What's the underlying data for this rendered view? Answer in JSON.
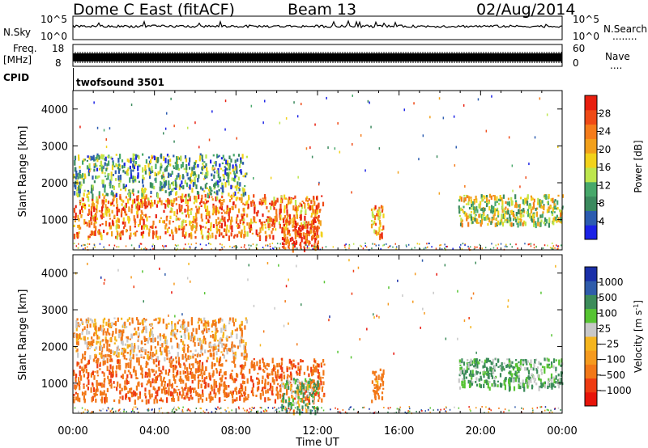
{
  "header": {
    "radar": "Dome C East (fitACF)",
    "beam": "Beam 13",
    "date": "02/Aug/2014"
  },
  "sky_panel": {
    "left_label": "N.Sky",
    "right_label": "N.Search",
    "left_ticks": [
      "10^5",
      "10^0"
    ],
    "right_ticks": [
      "10^5",
      "10^0"
    ],
    "right_dots": "........"
  },
  "freq_panel": {
    "left_label": "Freq.",
    "left_unit": "[MHz]",
    "left_ticks": [
      "18",
      "8"
    ],
    "right_label": "Nave",
    "right_ticks": [
      "60",
      "0"
    ],
    "right_dots": "...."
  },
  "cpid_panel": {
    "label": "CPID",
    "program": "twofsound 3501"
  },
  "colors": {
    "power": [
      "#1b22e6",
      "#2c5cb0",
      "#3b8a5e",
      "#47a86a",
      "#bde64d",
      "#f2d21b",
      "#f2a01b",
      "#f57c1b",
      "#ef4a16",
      "#e81e0e"
    ],
    "velocity": [
      "#1a2fa8",
      "#2f5cab",
      "#3c8c5a",
      "#56c432",
      "#c8c8c8",
      "#f5b51e",
      "#f59a1e",
      "#f27818",
      "#ee3b12",
      "#e8140a"
    ]
  },
  "chart_data": [
    {
      "type": "heatmap",
      "title": "",
      "ylabel": "Slant Range [km]",
      "xlabel": "",
      "x_unit": "UT hours",
      "xlim": [
        0,
        24
      ],
      "ylim": [
        180,
        4500
      ],
      "yticks": [
        "1000",
        "2000",
        "3000",
        "4000"
      ],
      "colorbar": {
        "label": "Power [dB]",
        "ticks": [
          "4",
          "8",
          "12",
          "16",
          "20",
          "24",
          "28"
        ],
        "range": [
          0,
          30
        ]
      },
      "echo_regions": [
        {
          "t0": 0.0,
          "t1": 12.3,
          "r0": 550,
          "r1": 1700,
          "level": 22
        },
        {
          "t0": 10.2,
          "t1": 12.0,
          "r0": 250,
          "r1": 1150,
          "level": 26
        },
        {
          "t0": 0.0,
          "t1": 8.5,
          "r0": 1700,
          "r1": 2800,
          "level": 10
        },
        {
          "t0": 14.6,
          "t1": 15.2,
          "r0": 500,
          "r1": 1400,
          "level": 20
        },
        {
          "t0": 18.9,
          "t1": 24.0,
          "r0": 900,
          "r1": 1700,
          "level": 14
        }
      ]
    },
    {
      "type": "heatmap",
      "title": "",
      "ylabel": "Slant Range [km]",
      "xlabel": "Time UT",
      "x_unit": "UT hours",
      "xlim": [
        0,
        24
      ],
      "ylim": [
        180,
        4500
      ],
      "xticks": [
        "00:00",
        "04:00",
        "08:00",
        "12:00",
        "16:00",
        "20:00",
        "00:00"
      ],
      "yticks": [
        "1000",
        "2000",
        "3000",
        "4000"
      ],
      "colorbar": {
        "label": "Velocity [m s",
        "label_sup": "-1",
        "label_close": "]",
        "ticks": [
          "1000",
          "500",
          "100",
          "25",
          "−25",
          "−100",
          "−500",
          "−1000"
        ]
      },
      "echo_regions": [
        {
          "t0": 0.0,
          "t1": 12.3,
          "r0": 550,
          "r1": 1700,
          "level": -160
        },
        {
          "t0": 10.2,
          "t1": 12.0,
          "r0": 250,
          "r1": 1150,
          "level": 40
        },
        {
          "t0": 0.0,
          "t1": 8.5,
          "r0": 1700,
          "r1": 2800,
          "level": -60
        },
        {
          "t0": 14.6,
          "t1": 15.2,
          "r0": 500,
          "r1": 1400,
          "level": -120
        },
        {
          "t0": 18.9,
          "t1": 24.0,
          "r0": 900,
          "r1": 1700,
          "level": 60
        }
      ]
    }
  ]
}
